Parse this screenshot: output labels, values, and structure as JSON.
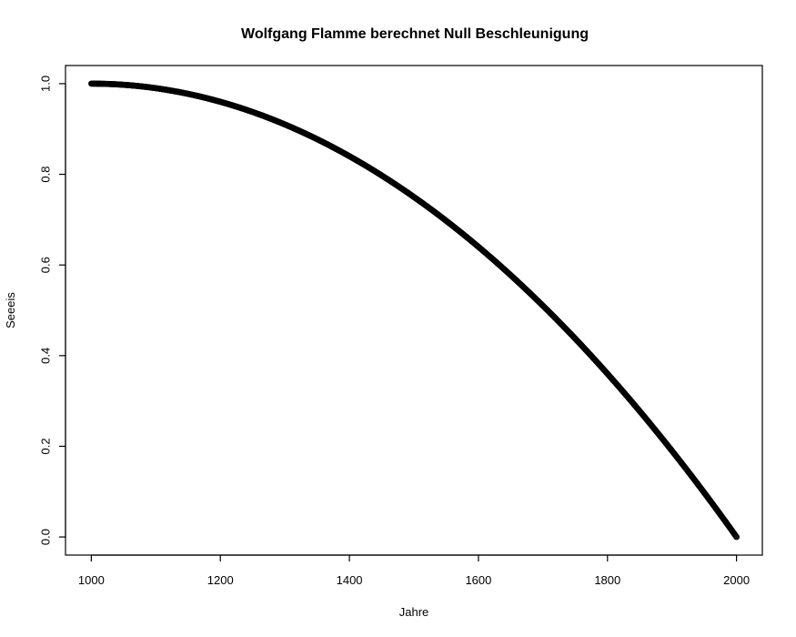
{
  "chart_data": {
    "type": "scatter",
    "title": "Wolfgang Flamme berechnet Null Beschleunigung",
    "xlabel": "Jahre",
    "ylabel": "Seeeis",
    "xlim": [
      960,
      2040
    ],
    "ylim": [
      -0.04,
      1.04
    ],
    "x_ticks": [
      1000,
      1200,
      1400,
      1600,
      1800,
      2000
    ],
    "y_ticks": [
      0.0,
      0.2,
      0.4,
      0.6,
      0.8,
      1.0
    ],
    "x_tick_labels": [
      "1000",
      "1200",
      "1400",
      "1600",
      "1800",
      "2000"
    ],
    "y_tick_labels": [
      "0.0",
      "0.2",
      "0.4",
      "0.6",
      "0.8",
      "1.0"
    ],
    "grid": false,
    "marker": "open-circle",
    "series": [
      {
        "x_start": 1000,
        "x_end": 2000,
        "x_step": 1,
        "formula": "y = 1 - ((x - 1000) / 1000)^2",
        "sample_points": [
          {
            "x": 1000,
            "y": 1.0
          },
          {
            "x": 1200,
            "y": 0.96
          },
          {
            "x": 1400,
            "y": 0.84
          },
          {
            "x": 1600,
            "y": 0.64
          },
          {
            "x": 1800,
            "y": 0.36
          },
          {
            "x": 2000,
            "y": 0.0
          }
        ]
      }
    ]
  }
}
